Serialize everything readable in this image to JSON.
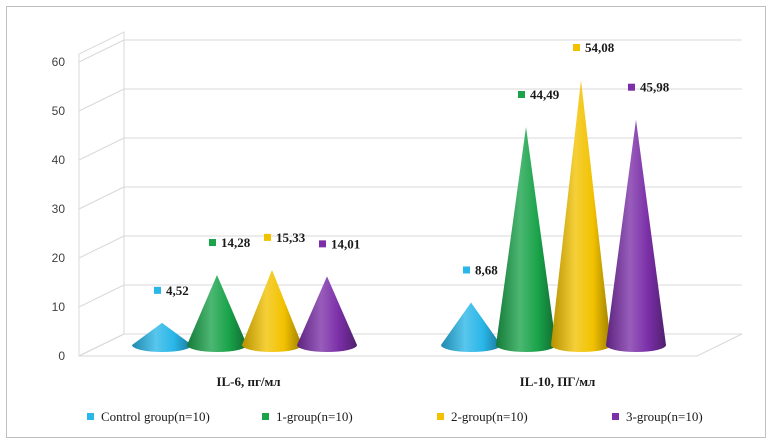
{
  "chart_data": {
    "type": "bar",
    "style": "3d-cone",
    "categories": [
      "IL-6, пг/мл",
      "IL-10, ПГ/мл"
    ],
    "series": [
      {
        "name": "Control group(n=10)",
        "values": [
          4.52,
          8.68
        ],
        "labels": [
          "4,52",
          "8,68"
        ],
        "color": "#29B6E8"
      },
      {
        "name": "1-group(n=10)",
        "values": [
          14.28,
          44.49
        ],
        "labels": [
          "14,28",
          "44,49"
        ],
        "color": "#1AA34A"
      },
      {
        "name": "2-group(n=10)",
        "values": [
          15.33,
          54.08
        ],
        "labels": [
          "15,33",
          "54,08"
        ],
        "color": "#F2C200"
      },
      {
        "name": "3-group(n=10)",
        "values": [
          14.01,
          45.98
        ],
        "labels": [
          "14,01",
          "45,98"
        ],
        "color": "#7B2FA8"
      }
    ],
    "y_ticks": [
      "0",
      "10",
      "20",
      "30",
      "40",
      "50",
      "60"
    ],
    "ylim": [
      0,
      60
    ],
    "grid": true,
    "legend_position": "bottom"
  }
}
